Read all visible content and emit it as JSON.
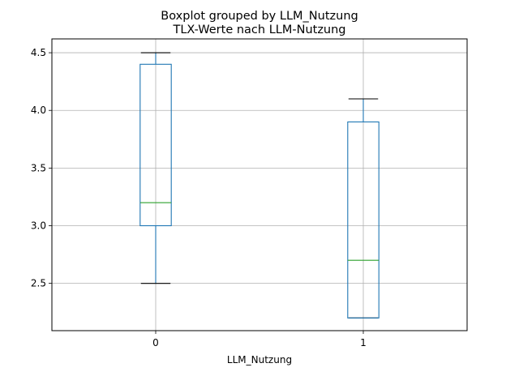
{
  "chart_data": {
    "type": "box",
    "suptitle": "Boxplot grouped by LLM_Nutzung",
    "title": "TLX-Werte nach LLM-Nutzung",
    "xlabel": "LLM_Nutzung",
    "ylabel": "",
    "categories": [
      "0",
      "1"
    ],
    "ylim": [
      2.09,
      4.62
    ],
    "yticks": [
      "2.5",
      "3.0",
      "3.5",
      "4.0",
      "4.5"
    ],
    "grid": true,
    "boxes": [
      {
        "category": "0",
        "whisker_low": 2.5,
        "q1": 3.0,
        "median": 3.2,
        "q3": 4.4,
        "whisker_high": 4.5
      },
      {
        "category": "1",
        "whisker_low": 2.2,
        "q1": 2.2,
        "median": 2.7,
        "q3": 3.9,
        "whisker_high": 4.1
      }
    ],
    "colors": {
      "box": "#1f77b4",
      "median": "#2ca02c",
      "whisker": "#1f77b4",
      "cap": "#000000",
      "grid": "#b0b0b0"
    }
  }
}
